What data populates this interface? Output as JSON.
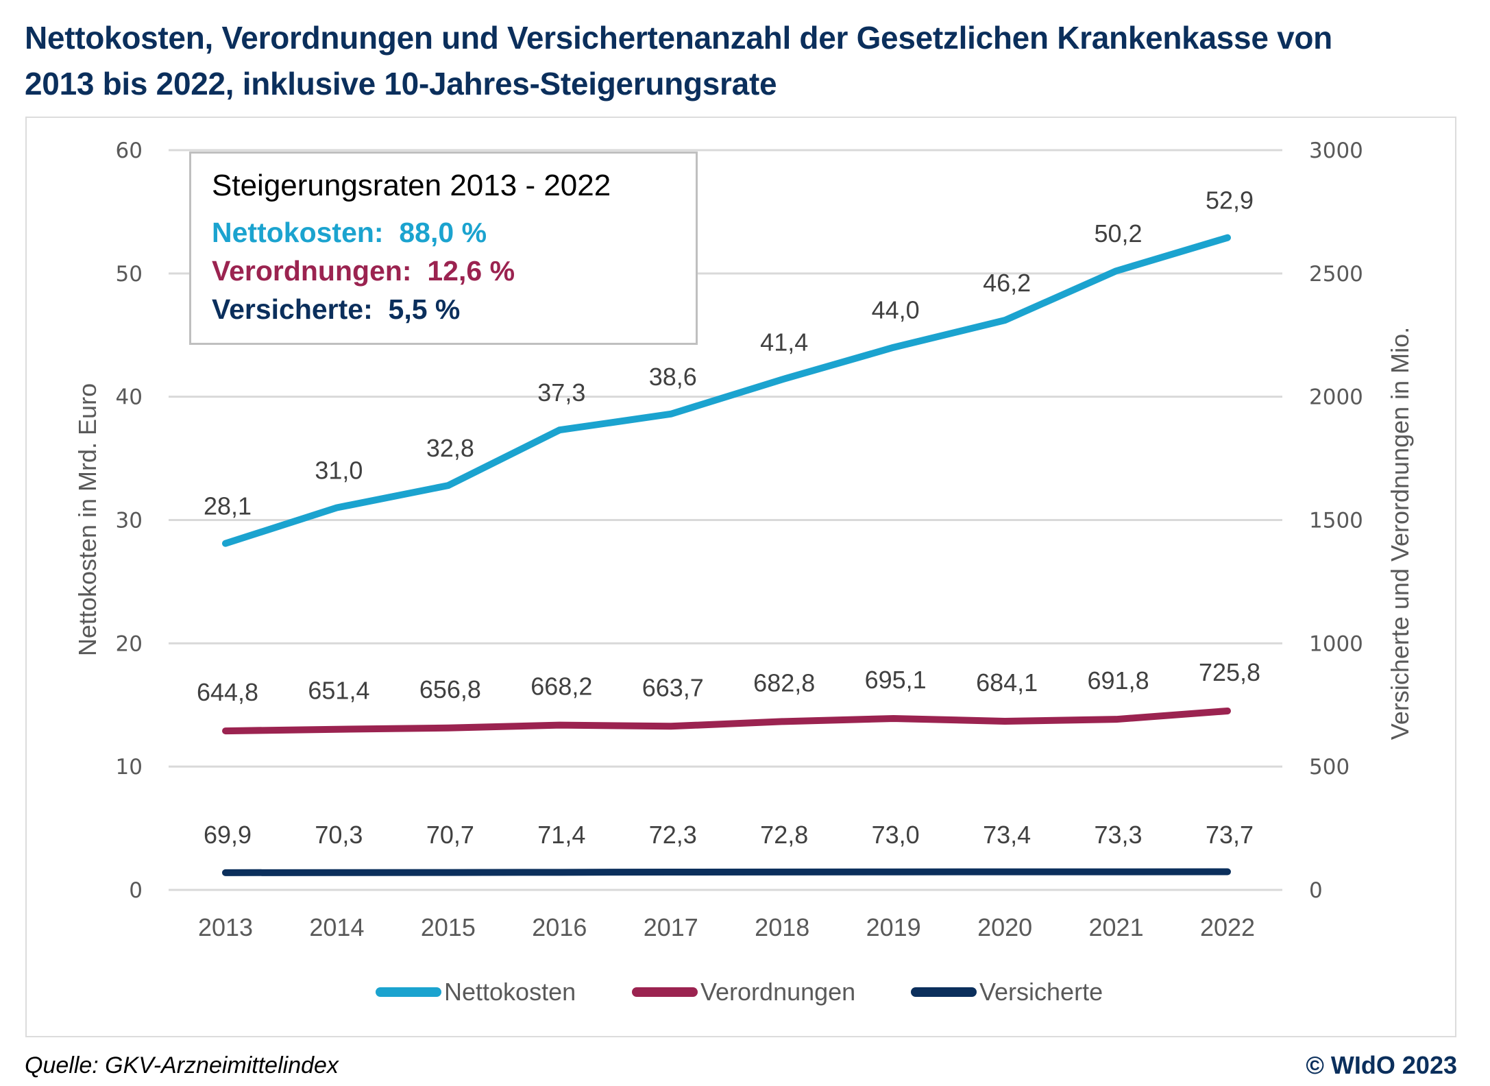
{
  "title": {
    "line1": "Nettokosten, Verordnungen und Versichertenanzahl der Gesetzlichen Krankenkasse von",
    "line2": "2013 bis 2022, inklusive 10-Jahres-Steigerungsrate"
  },
  "rates_box": {
    "title": "Steigerungsraten 2013 - 2022",
    "rows": [
      {
        "label": "Nettokosten:",
        "value": "88,0 %",
        "color": "#1ba3cf"
      },
      {
        "label": "Verordnungen:",
        "value": "12,6 %",
        "color": "#9b2350"
      },
      {
        "label": "Versicherte:",
        "value": "5,5 %",
        "color": "#0b2f5c"
      }
    ]
  },
  "footer": {
    "source": "Quelle: GKV-Arzneimittelindex",
    "copyright": "© WIdO 2023"
  },
  "chart_data": {
    "type": "line",
    "title": "Nettokosten, Verordnungen und Versichertenanzahl der Gesetzlichen Krankenkasse von 2013 bis 2022, inklusive 10-Jahres-Steigerungsrate",
    "categories": [
      "2013",
      "2014",
      "2015",
      "2016",
      "2017",
      "2018",
      "2019",
      "2020",
      "2021",
      "2022"
    ],
    "ylabel": "Nettokosten in Mrd. Euro",
    "y2label": "Versicherte und Verordnungen in Mio.",
    "ylim": [
      0,
      60
    ],
    "y2lim": [
      0,
      3000
    ],
    "yticks": [
      "0",
      "10",
      "20",
      "30",
      "40",
      "50",
      "60"
    ],
    "y2ticks": [
      "0",
      "500",
      "1000",
      "1500",
      "2000",
      "2500",
      "3000"
    ],
    "grid": true,
    "legend_position": "bottom",
    "series": [
      {
        "name": "Nettokosten",
        "axis": "left",
        "color": "#1ba3cf",
        "values": [
          28.1,
          31.0,
          32.8,
          37.3,
          38.6,
          41.4,
          44.0,
          46.2,
          50.2,
          52.9
        ],
        "labels": [
          "28,1",
          "31,0",
          "32,8",
          "37,3",
          "38,6",
          "41,4",
          "44,0",
          "46,2",
          "50,2",
          "52,9"
        ]
      },
      {
        "name": "Verordnungen",
        "axis": "right",
        "color": "#9b2350",
        "values": [
          644.8,
          651.4,
          656.8,
          668.2,
          663.7,
          682.8,
          695.1,
          684.1,
          691.8,
          725.8
        ],
        "labels": [
          "644,8",
          "651,4",
          "656,8",
          "668,2",
          "663,7",
          "682,8",
          "695,1",
          "684,1",
          "691,8",
          "725,8"
        ]
      },
      {
        "name": "Versicherte",
        "axis": "right",
        "color": "#0b2f5c",
        "values": [
          69.9,
          70.3,
          70.7,
          71.4,
          72.3,
          72.8,
          73.0,
          73.4,
          73.3,
          73.7
        ],
        "labels": [
          "69,9",
          "70,3",
          "70,7",
          "71,4",
          "72,3",
          "72,8",
          "73,0",
          "73,4",
          "73,3",
          "73,7"
        ]
      }
    ],
    "annotations": [
      "Steigerungsraten 2013 - 2022",
      "Nettokosten: 88,0 %",
      "Verordnungen: 12,6 %",
      "Versicherte: 5,5 %"
    ]
  }
}
